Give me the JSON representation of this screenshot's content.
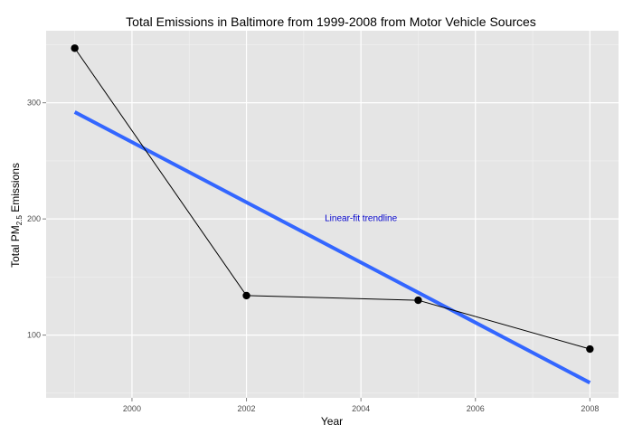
{
  "chart_data": {
    "type": "line",
    "title": "Total Emissions in Baltimore from 1999-2008 from Motor Vehicle Sources",
    "xlabel": "Year",
    "ylabel": {
      "pre": "Total PM",
      "sub": "2.5",
      "post": " Emissions"
    },
    "x_ticks": [
      2000,
      2002,
      2004,
      2006,
      2008
    ],
    "y_ticks": [
      100,
      200,
      300
    ],
    "xlim": [
      1998.5,
      2008.5
    ],
    "ylim": [
      46,
      362
    ],
    "grid": true,
    "legend": "none",
    "series": [
      {
        "x": [
          1999,
          2002,
          2005,
          2008
        ],
        "y": [
          347,
          134,
          130,
          88
        ],
        "style": "line-with-points"
      }
    ],
    "trendline": {
      "x": [
        1999,
        2008
      ],
      "y": [
        292,
        59
      ]
    },
    "annotation": {
      "text": "Linear-fit trendline",
      "x": 2004,
      "y": 198
    }
  },
  "colors": {
    "panel": "#e5e5e5",
    "grid_major": "#ffffff",
    "grid_minor": "#f2f2f2",
    "series": "#000000",
    "trendline": "#3366ff",
    "annotation": "#0000cc"
  }
}
